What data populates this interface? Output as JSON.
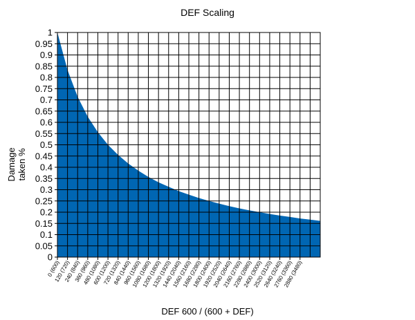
{
  "chart_data": {
    "type": "area",
    "title": "DEF Scaling",
    "xlabel": "DEF 600 / (600 + DEF)",
    "ylabel_lines": [
      "Damage",
      "taken %"
    ],
    "ylim": [
      0,
      1
    ],
    "xlim": [
      0,
      3120
    ],
    "grid": true,
    "fill_color": "#0066b3",
    "yticks": [
      "0",
      "0.05",
      "0.1",
      "0.15",
      "0.2",
      "0.25",
      "0.3",
      "0.35",
      "0.4",
      "0.45",
      "0.5",
      "0.55",
      "0.6",
      "0.65",
      "0.7",
      "0.75",
      "0.8",
      "0.85",
      "0.9",
      "0.95",
      "1"
    ],
    "xticks": [
      "0 (600)",
      "120 (720)",
      "240 (840)",
      "360 (960)",
      "480 (1080)",
      "600 (1200)",
      "720 (1320)",
      "840 (1440)",
      "960 (1560)",
      "1080 (1680)",
      "1200 (1800)",
      "1320 (1920)",
      "1440 (2040)",
      "1560 (2160)",
      "1680 (2280)",
      "1800 (2400)",
      "1920 (2520)",
      "2040 (2640)",
      "2160 (2760)",
      "2280 (2880)",
      "2400 (3000)",
      "2520 (3120)",
      "2640 (3240)",
      "2760 (3360)",
      "2880 (3480)"
    ],
    "series": [
      {
        "x": [
          0,
          120,
          240,
          360,
          480,
          600,
          720,
          840,
          960,
          1080,
          1200,
          1320,
          1440,
          1560,
          1680,
          1800,
          1920,
          2040,
          2160,
          2280,
          2400,
          2520,
          2640,
          2760,
          2880,
          3000,
          3120
        ],
        "y": [
          1.0,
          0.833,
          0.714,
          0.625,
          0.556,
          0.5,
          0.455,
          0.417,
          0.385,
          0.357,
          0.333,
          0.313,
          0.294,
          0.278,
          0.263,
          0.25,
          0.238,
          0.227,
          0.217,
          0.208,
          0.2,
          0.192,
          0.185,
          0.179,
          0.172,
          0.167,
          0.161
        ]
      }
    ]
  }
}
